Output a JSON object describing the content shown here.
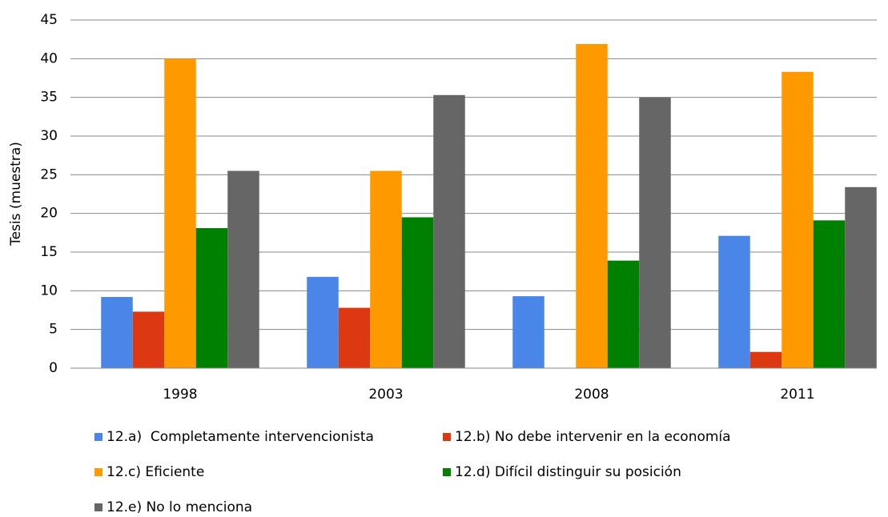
{
  "chart_data": {
    "type": "bar",
    "ylabel": "Tesis (muestra)",
    "categories": [
      "1998",
      "2003",
      "2008",
      "2011"
    ],
    "series": [
      {
        "name": "12.a)  Completamente intervencionista",
        "color": "#4a86e8",
        "values": [
          9.2,
          11.8,
          9.3,
          17.1
        ]
      },
      {
        "name": "12.b) No debe intervenir en la economía",
        "color": "#dc3912",
        "values": [
          7.3,
          7.8,
          0,
          2.1
        ]
      },
      {
        "name": "12.c) Eficiente",
        "color": "#ff9900",
        "values": [
          40,
          25.5,
          41.9,
          38.3
        ]
      },
      {
        "name": "12.d) Difícil distinguir su posición",
        "color": "#008000",
        "values": [
          18.1,
          19.5,
          13.9,
          19.1
        ]
      },
      {
        "name": "12.e) No lo menciona",
        "color": "#666666",
        "values": [
          25.5,
          35.3,
          35,
          23.4
        ]
      }
    ],
    "ylim": [
      0,
      45
    ],
    "yticks": [
      0,
      5,
      10,
      15,
      20,
      25,
      30,
      35,
      40,
      45
    ],
    "grid": true,
    "legend": "bottom"
  }
}
